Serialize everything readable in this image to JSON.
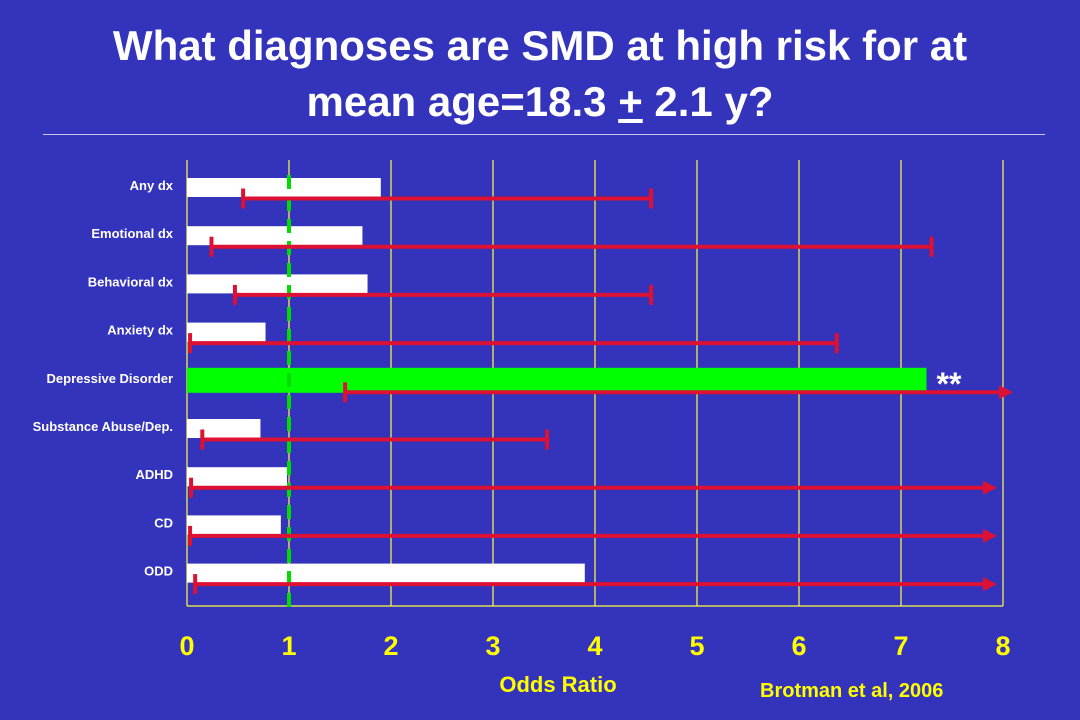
{
  "slide": {
    "title_line1": "What diagnoses are SMD at high risk for at",
    "title_line2_pre": "mean age=18.3 ",
    "title_line2_pm": "+",
    "title_line2_post": " 2.1 y?",
    "source": "Brotman et al, 2006"
  },
  "chart_data": {
    "type": "bar",
    "orientation": "horizontal",
    "categories": [
      "Any dx",
      "Emotional dx",
      "Behavioral dx",
      "Anxiety dx",
      "Depressive Disorder",
      "Substance Abuse/Dep.",
      "ADHD",
      "CD",
      "ODD"
    ],
    "series": [
      {
        "values": [
          1.9,
          1.72,
          1.77,
          0.77,
          7.25,
          0.72,
          0.98,
          0.92,
          3.9
        ],
        "ci_lower": [
          0.55,
          0.24,
          0.47,
          0.03,
          1.55,
          0.15,
          0.04,
          0.03,
          0.08
        ],
        "ci_upper": [
          4.55,
          7.3,
          4.55,
          6.37,
          8.0,
          3.53,
          8.0,
          8.0,
          8.0
        ],
        "ci_extends_beyond": [
          false,
          false,
          false,
          false,
          true,
          false,
          true,
          true,
          true
        ]
      }
    ],
    "highlight_index": 4,
    "significance_label": "**",
    "reference_line": 1,
    "xlabel": "Odds Ratio",
    "xlim": [
      0,
      8
    ],
    "xticks": [
      "0",
      "1",
      "2",
      "3",
      "4",
      "5",
      "6",
      "7",
      "8"
    ],
    "grid": "vertical",
    "colors": {
      "background": "#3333BB",
      "bar": "#FFFFFF",
      "highlight_bar": "#00FF00",
      "ci": "#DD1133",
      "reference_line": "#00DD00",
      "grid": "#FFFF44",
      "text_axis": "#FFFF00",
      "category_text": "#FFFFFF"
    }
  }
}
